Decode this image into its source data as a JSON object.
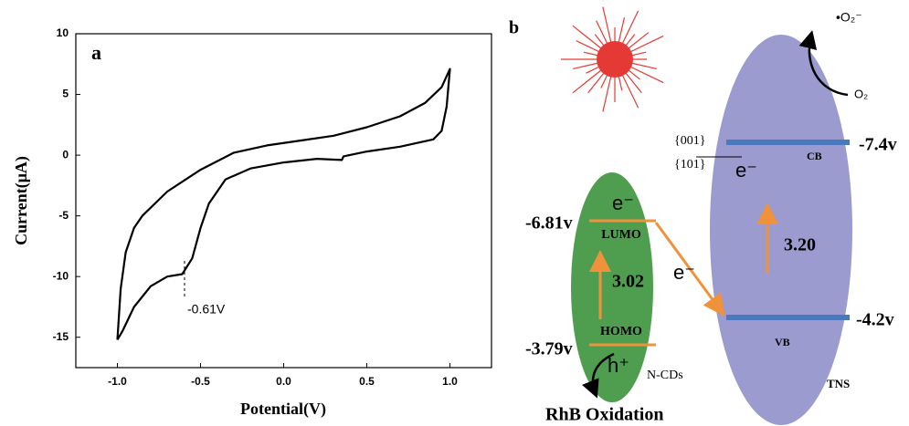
{
  "chart_data": {
    "type": "line",
    "panel_label": "a",
    "x_label": "Potential(V)",
    "y_label": "Current(μA)",
    "annotation": "-0.61V",
    "x": [
      -1.0,
      -0.98,
      -0.95,
      -0.9,
      -0.85,
      -0.7,
      -0.5,
      -0.3,
      -0.1,
      0.1,
      0.3,
      0.5,
      0.7,
      0.85,
      0.95,
      1.0,
      0.98,
      0.95,
      0.9,
      0.7,
      0.5,
      0.36,
      0.35,
      0.2,
      0.0,
      -0.2,
      -0.35,
      -0.45,
      -0.5,
      -0.55,
      -0.61,
      -0.7,
      -0.8,
      -0.9,
      -0.97,
      -1.0
    ],
    "values": [
      -15.2,
      -11,
      -8,
      -6,
      -5,
      -3,
      -1.2,
      0.2,
      0.8,
      1.2,
      1.6,
      2.3,
      3.2,
      4.3,
      5.6,
      7.1,
      4,
      2,
      1.3,
      0.7,
      0.3,
      -0.1,
      -0.4,
      -0.3,
      -0.6,
      -1.1,
      -2,
      -4,
      -6,
      -8.5,
      -9.8,
      -10,
      -10.8,
      -12.5,
      -14.5,
      -15.2
    ],
    "color": "#000000",
    "xlim": [
      -1.25,
      1.25
    ],
    "xticks": [
      {
        "value": -1.0,
        "label": "-1.0"
      },
      -0.5,
      {
        "value": 0.0,
        "label": "0.0"
      },
      0.5,
      {
        "value": 1.0,
        "label": "1.0"
      }
    ],
    "ylim": [
      -17.5,
      10
    ],
    "yticks": [
      -15,
      -10,
      -5,
      0,
      5,
      10
    ]
  },
  "diagram": {
    "panel_label": "b",
    "ncds": {
      "name": "N-CDs",
      "lumo": "LUMO",
      "homo": "HOMO",
      "lumo_level": "-6.81v",
      "homo_level": "-3.79v",
      "gap": "3.02",
      "electron": "e⁻",
      "hole": "h⁺",
      "product": "RhB Oxidation"
    },
    "tns": {
      "name": "TNS",
      "cb": "CB",
      "vb": "VB",
      "cb_level": "-7.4v",
      "vb_level": "-4.2v",
      "gap": "3.20",
      "facet_top": "{001}",
      "facet_bottom": "{101}",
      "electron": "e⁻"
    },
    "transfer_electron": "e⁻",
    "superoxide": "•O₂⁻",
    "oxygen": "O₂"
  }
}
